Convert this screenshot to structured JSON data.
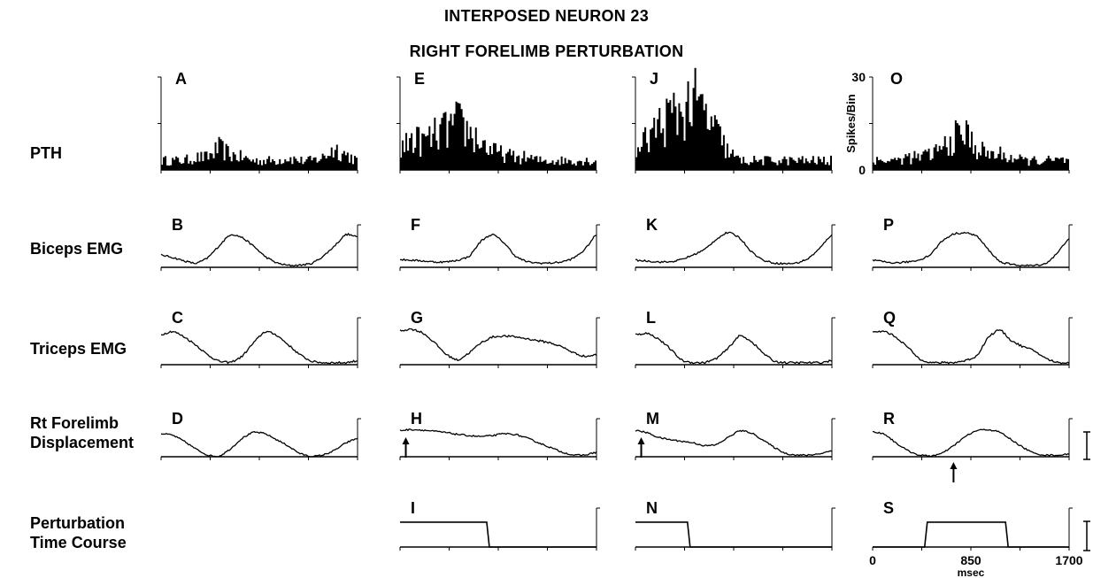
{
  "title": "INTERPOSED NEURON 23",
  "subtitle": "RIGHT FORELIMB PERTURBATION",
  "rows": [
    {
      "label_lines": [
        "PTH"
      ]
    },
    {
      "label_lines": [
        "Biceps EMG"
      ]
    },
    {
      "label_lines": [
        "Triceps EMG"
      ]
    },
    {
      "label_lines": [
        "Rt Forelimb",
        "Displacement"
      ]
    },
    {
      "label_lines": [
        "Perturbation",
        "Time Course"
      ]
    }
  ],
  "column_panel_letters": [
    [
      "A",
      "B",
      "C",
      "D",
      null
    ],
    [
      "E",
      "F",
      "G",
      "H",
      "I"
    ],
    [
      "J",
      "K",
      "L",
      "M",
      "N"
    ],
    [
      "O",
      "P",
      "Q",
      "R",
      "S"
    ]
  ],
  "chart_data": {
    "type": "line",
    "pth_ylabel": "Spikes/Bin",
    "pth_ylim": [
      0,
      30
    ],
    "pth_yticks": [
      "0",
      "30"
    ],
    "xlim": [
      0,
      1700
    ],
    "xticks": [
      "0",
      "850",
      "1700"
    ],
    "xunit": "msec",
    "x": [
      0,
      100,
      200,
      300,
      400,
      500,
      600,
      700,
      800,
      900,
      1000,
      1100,
      1200,
      1300,
      1400,
      1500,
      1600,
      1700
    ],
    "series": [
      {
        "panel": "A",
        "values": [
          3,
          3,
          3,
          4,
          4,
          7,
          5,
          4,
          3,
          3,
          3,
          4,
          3,
          3,
          4,
          7,
          5,
          3
        ]
      },
      {
        "panel": "B",
        "values": [
          0.35,
          0.28,
          0.18,
          0.1,
          0.25,
          0.6,
          0.95,
          0.85,
          0.6,
          0.3,
          0.12,
          0.05,
          0.06,
          0.1,
          0.3,
          0.6,
          0.95,
          0.85
        ]
      },
      {
        "panel": "C",
        "values": [
          0.75,
          0.85,
          0.7,
          0.5,
          0.25,
          0.08,
          0.05,
          0.2,
          0.55,
          0.85,
          0.75,
          0.5,
          0.25,
          0.08,
          0.05,
          0.05,
          0.05,
          0.1
        ]
      },
      {
        "panel": "D",
        "values": [
          0.75,
          0.7,
          0.5,
          0.25,
          0.05,
          0.0,
          0.25,
          0.6,
          0.8,
          0.75,
          0.55,
          0.35,
          0.1,
          0.0,
          0.05,
          0.2,
          0.45,
          0.6
        ]
      },
      {
        "panel": "E",
        "values": [
          6,
          10,
          9,
          11,
          13,
          15,
          12,
          9,
          6,
          5,
          4,
          4,
          3,
          3,
          3,
          3,
          3,
          3
        ]
      },
      {
        "panel": "F",
        "values": [
          0.22,
          0.2,
          0.18,
          0.15,
          0.15,
          0.2,
          0.3,
          0.75,
          0.95,
          0.7,
          0.3,
          0.15,
          0.12,
          0.12,
          0.15,
          0.25,
          0.5,
          0.95
        ]
      },
      {
        "panel": "G",
        "values": [
          0.85,
          0.9,
          0.8,
          0.55,
          0.25,
          0.1,
          0.3,
          0.55,
          0.7,
          0.72,
          0.7,
          0.65,
          0.6,
          0.55,
          0.45,
          0.3,
          0.2,
          0.25
        ]
      },
      {
        "panel": "H",
        "values": [
          0.85,
          0.88,
          0.86,
          0.82,
          0.78,
          0.72,
          0.68,
          0.65,
          0.68,
          0.75,
          0.72,
          0.6,
          0.45,
          0.3,
          0.15,
          0.05,
          0.05,
          0.15
        ]
      },
      {
        "panel": "I",
        "values": [
          1,
          1,
          1,
          1,
          1,
          1,
          1,
          1,
          0,
          0,
          0,
          0,
          0,
          0,
          0,
          0,
          0,
          0
        ]
      },
      {
        "panel": "J",
        "values": [
          5,
          10,
          14,
          17,
          19,
          22,
          18,
          12,
          6,
          3,
          3,
          3,
          3,
          3,
          3,
          3,
          3,
          3
        ]
      },
      {
        "panel": "K",
        "values": [
          0.2,
          0.18,
          0.15,
          0.15,
          0.22,
          0.35,
          0.5,
          0.8,
          1.0,
          0.85,
          0.45,
          0.2,
          0.12,
          0.1,
          0.12,
          0.25,
          0.55,
          0.95
        ]
      },
      {
        "panel": "L",
        "values": [
          0.75,
          0.8,
          0.65,
          0.4,
          0.1,
          0.05,
          0.05,
          0.15,
          0.4,
          0.75,
          0.6,
          0.3,
          0.08,
          0.05,
          0.05,
          0.05,
          0.05,
          0.1
        ]
      },
      {
        "panel": "M",
        "values": [
          0.85,
          0.78,
          0.62,
          0.55,
          0.5,
          0.45,
          0.35,
          0.38,
          0.62,
          0.85,
          0.78,
          0.55,
          0.3,
          0.1,
          0.05,
          0.05,
          0.1,
          0.2
        ]
      },
      {
        "panel": "N",
        "values": [
          1,
          1,
          1,
          1,
          1,
          0,
          0,
          0,
          0,
          0,
          0,
          0,
          0,
          0,
          0,
          0,
          0,
          0
        ]
      },
      {
        "panel": "O",
        "values": [
          3,
          3,
          3,
          4,
          4,
          5,
          7,
          10,
          12,
          7,
          5,
          5,
          4,
          3,
          3,
          3,
          3,
          3
        ]
      },
      {
        "panel": "P",
        "values": [
          0.2,
          0.15,
          0.12,
          0.15,
          0.2,
          0.35,
          0.75,
          0.95,
          0.98,
          0.9,
          0.5,
          0.15,
          0.08,
          0.05,
          0.05,
          0.1,
          0.4,
          0.85
        ]
      },
      {
        "panel": "Q",
        "values": [
          0.8,
          0.85,
          0.7,
          0.45,
          0.15,
          0.05,
          0.05,
          0.05,
          0.1,
          0.2,
          0.7,
          0.9,
          0.6,
          0.45,
          0.35,
          0.15,
          0.05,
          0.05
        ]
      },
      {
        "panel": "R",
        "values": [
          0.8,
          0.75,
          0.45,
          0.2,
          0.05,
          0.02,
          0.1,
          0.35,
          0.65,
          0.85,
          0.88,
          0.8,
          0.55,
          0.3,
          0.1,
          0.05,
          0.05,
          0.08
        ]
      },
      {
        "panel": "S",
        "values": [
          0,
          0,
          0,
          0,
          0,
          1,
          1,
          1,
          1,
          1,
          1,
          1,
          0,
          0,
          0,
          0,
          0,
          0
        ]
      }
    ],
    "perturbation_onset_arrows": [
      {
        "panel": "H",
        "x": 50
      },
      {
        "panel": "M",
        "x": 50
      },
      {
        "panel": "R",
        "x": 700
      }
    ]
  }
}
